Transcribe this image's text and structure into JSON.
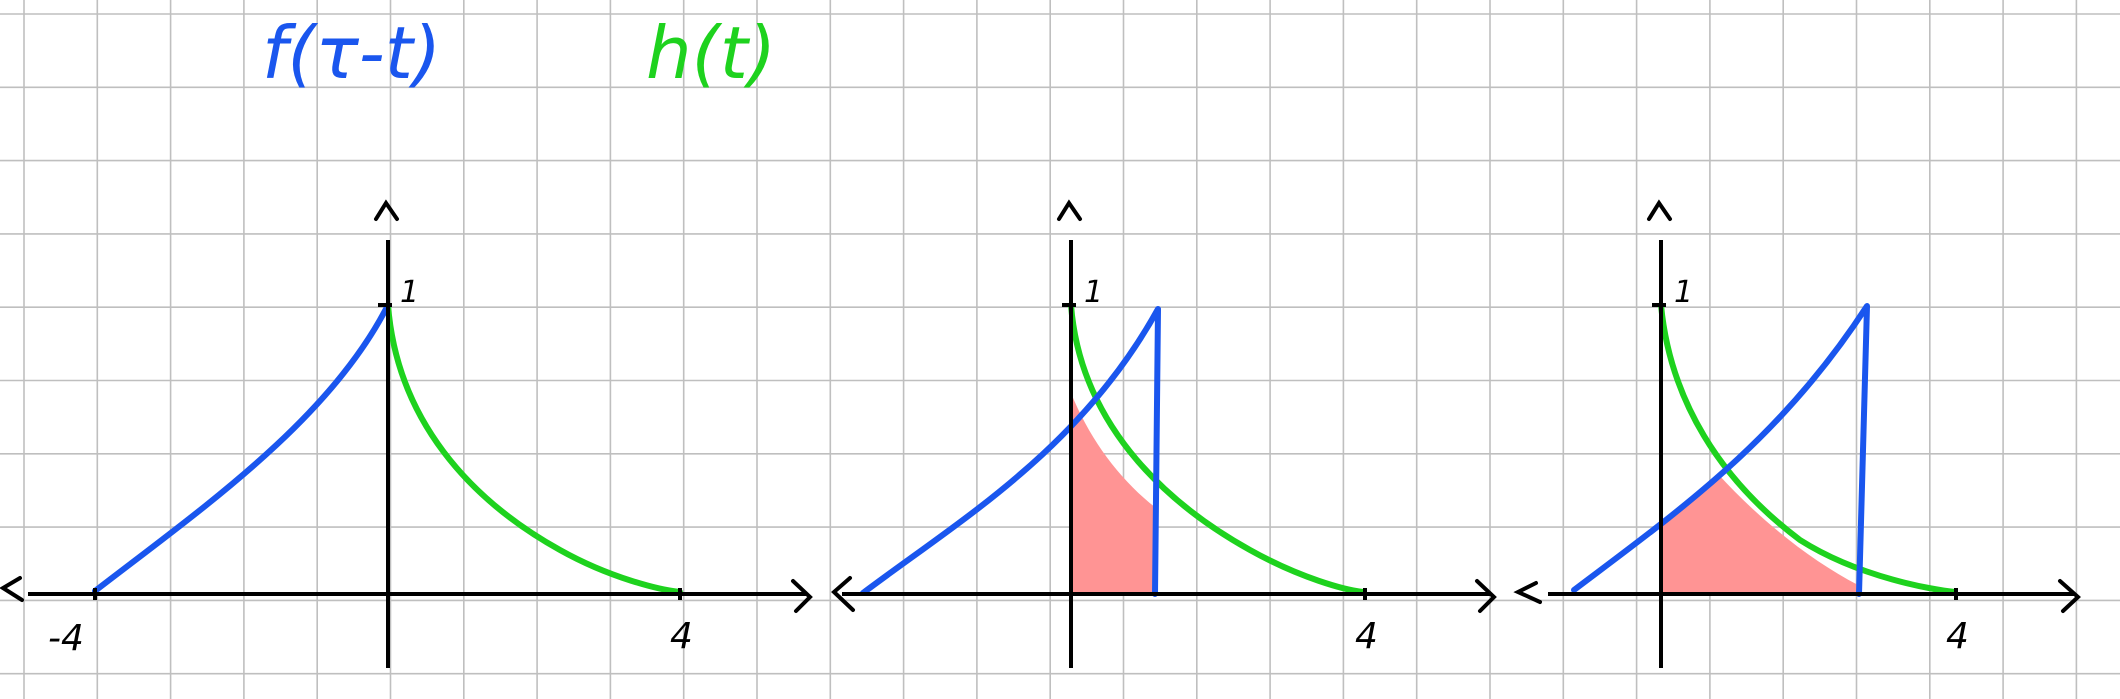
{
  "legend": {
    "blue_label": "f(τ-t)",
    "green_label": "h(t)"
  },
  "colors": {
    "grid": "#bfbfbf",
    "axis": "#000000",
    "blue": "#1a56ee",
    "green": "#1ed21e",
    "fill": "#ff9494",
    "background": "#ffffff"
  },
  "panels": [
    {
      "y_tick_label": "1",
      "x_tick_labels": [
        "-4",
        "4"
      ]
    },
    {
      "y_tick_label": "1",
      "x_tick_labels": [
        "4"
      ]
    },
    {
      "y_tick_label": "1",
      "x_tick_labels": [
        "4"
      ]
    }
  ]
}
